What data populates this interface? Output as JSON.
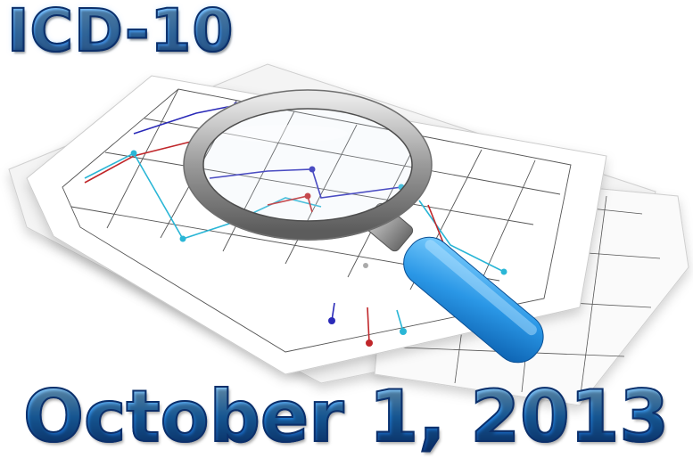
{
  "heading": "ICD-10",
  "date": "October 1, 2013",
  "illustration": {
    "subject": "magnifying glass over chart papers",
    "icon": "magnifier-icon",
    "colors": {
      "handle": "#2a97e6",
      "series_blue": "#2b2bb8",
      "series_red": "#c0282a",
      "series_cyan": "#2bb6d6",
      "grid": "#555555"
    }
  }
}
